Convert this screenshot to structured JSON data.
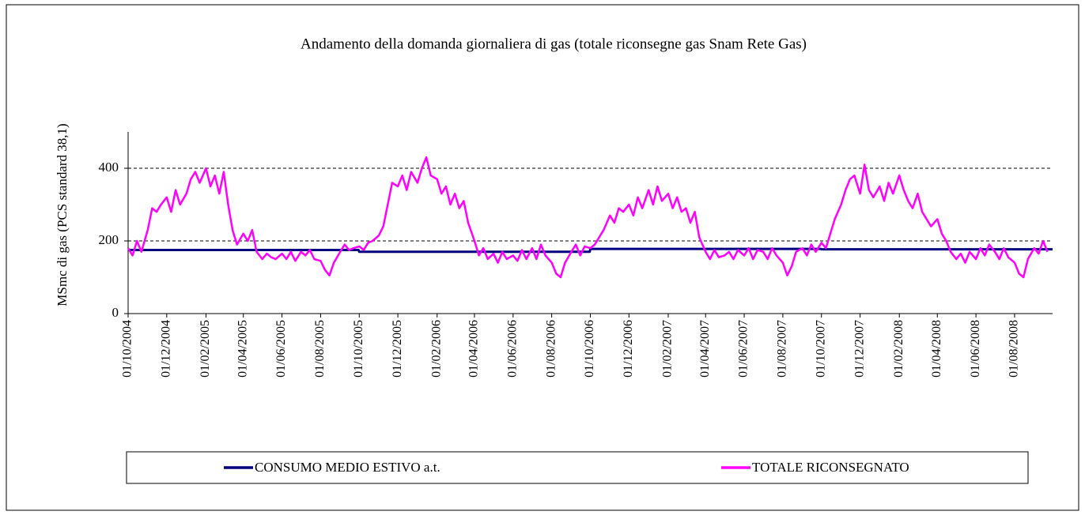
{
  "chart_data": {
    "type": "line",
    "title": "Andamento della domanda giornaliera di gas (totale riconsegne gas Snam Rete Gas)",
    "y_label": "MSmc di gas (PCS standard 38,1)",
    "xlim": [
      "01/10/2004",
      "30/09/2008"
    ],
    "xticks": [
      "01/10/2004",
      "01/12/2004",
      "01/02/2005",
      "01/04/2005",
      "01/06/2005",
      "01/08/2005",
      "01/10/2005",
      "01/12/2005",
      "01/02/2006",
      "01/04/2006",
      "01/06/2006",
      "01/08/2006",
      "01/10/2006",
      "01/12/2006",
      "01/02/2007",
      "01/04/2007",
      "01/06/2007",
      "01/08/2007",
      "01/10/2007",
      "01/12/2007",
      "01/02/2008",
      "01/04/2008",
      "01/06/2008",
      "01/08/2008"
    ],
    "ylim": [
      0,
      500
    ],
    "yticks": [
      0,
      200,
      400
    ],
    "grid": true,
    "legend": "bottom",
    "series": [
      {
        "name": "CONSUMO MEDIO ESTIVO a.t.",
        "color": "#000080",
        "x": [
          "01/10/2004",
          "30/09/2005",
          "01/10/2005",
          "30/09/2006",
          "01/10/2006",
          "30/09/2007",
          "01/10/2007",
          "30/09/2008"
        ],
        "values": [
          175,
          175,
          170,
          170,
          178,
          178,
          177,
          177
        ]
      },
      {
        "name": "TOTALE RICONSEGNATO",
        "color": "#ff00ff",
        "x": [
          "01/10/2004",
          "08/10/2004",
          "15/10/2004",
          "22/10/2004",
          "01/11/2004",
          "08/11/2004",
          "15/11/2004",
          "22/11/2004",
          "01/12/2004",
          "08/12/2004",
          "15/12/2004",
          "22/12/2004",
          "01/01/2005",
          "08/01/2005",
          "15/01/2005",
          "22/01/2005",
          "01/02/2005",
          "08/02/2005",
          "15/02/2005",
          "22/02/2005",
          "01/03/2005",
          "08/03/2005",
          "15/03/2005",
          "22/03/2005",
          "01/04/2005",
          "08/04/2005",
          "15/04/2005",
          "22/04/2005",
          "01/05/2005",
          "08/05/2005",
          "15/05/2005",
          "22/05/2005",
          "01/06/2005",
          "08/06/2005",
          "15/06/2005",
          "22/06/2005",
          "01/07/2005",
          "08/07/2005",
          "15/07/2005",
          "22/07/2005",
          "01/08/2005",
          "08/08/2005",
          "15/08/2005",
          "22/08/2005",
          "01/09/2005",
          "08/09/2005",
          "15/09/2005",
          "22/09/2005",
          "01/10/2005",
          "08/10/2005",
          "15/10/2005",
          "22/10/2005",
          "01/11/2005",
          "08/11/2005",
          "15/11/2005",
          "22/11/2005",
          "01/12/2005",
          "08/12/2005",
          "15/12/2005",
          "22/12/2005",
          "01/01/2006",
          "08/01/2006",
          "15/01/2006",
          "22/01/2006",
          "01/02/2006",
          "08/02/2006",
          "15/02/2006",
          "22/02/2006",
          "01/03/2006",
          "08/03/2006",
          "15/03/2006",
          "22/03/2006",
          "01/04/2006",
          "08/04/2006",
          "15/04/2006",
          "22/04/2006",
          "01/05/2006",
          "08/05/2006",
          "15/05/2006",
          "22/05/2006",
          "01/06/2006",
          "08/06/2006",
          "15/06/2006",
          "22/06/2006",
          "01/07/2006",
          "08/07/2006",
          "15/07/2006",
          "22/07/2006",
          "01/08/2006",
          "08/08/2006",
          "15/08/2006",
          "22/08/2006",
          "01/09/2006",
          "08/09/2006",
          "15/09/2006",
          "22/09/2006",
          "01/10/2006",
          "08/10/2006",
          "15/10/2006",
          "22/10/2006",
          "01/11/2006",
          "08/11/2006",
          "15/11/2006",
          "22/11/2006",
          "01/12/2006",
          "08/12/2006",
          "15/12/2006",
          "22/12/2006",
          "01/01/2007",
          "08/01/2007",
          "15/01/2007",
          "22/01/2007",
          "01/02/2007",
          "08/02/2007",
          "15/02/2007",
          "22/02/2007",
          "01/03/2007",
          "08/03/2007",
          "15/03/2007",
          "22/03/2007",
          "01/04/2007",
          "08/04/2007",
          "15/04/2007",
          "22/04/2007",
          "01/05/2007",
          "08/05/2007",
          "15/05/2007",
          "22/05/2007",
          "01/06/2007",
          "08/06/2007",
          "15/06/2007",
          "22/06/2007",
          "01/07/2007",
          "08/07/2007",
          "15/07/2007",
          "22/07/2007",
          "01/08/2007",
          "08/08/2007",
          "15/08/2007",
          "22/08/2007",
          "01/09/2007",
          "08/09/2007",
          "15/09/2007",
          "22/09/2007",
          "01/10/2007",
          "08/10/2007",
          "15/10/2007",
          "22/10/2007",
          "01/11/2007",
          "08/11/2007",
          "15/11/2007",
          "22/11/2007",
          "01/12/2007",
          "08/12/2007",
          "15/12/2007",
          "22/12/2007",
          "01/01/2008",
          "08/01/2008",
          "15/01/2008",
          "22/01/2008",
          "01/02/2008",
          "08/02/2008",
          "15/02/2008",
          "22/02/2008",
          "01/03/2008",
          "08/03/2008",
          "15/03/2008",
          "22/03/2008",
          "01/04/2008",
          "08/04/2008",
          "15/04/2008",
          "22/04/2008",
          "01/05/2008",
          "08/05/2008",
          "15/05/2008",
          "22/05/2008",
          "01/06/2008",
          "08/06/2008",
          "15/06/2008",
          "22/06/2008",
          "01/07/2008",
          "08/07/2008",
          "15/07/2008",
          "22/07/2008",
          "01/08/2008",
          "08/08/2008",
          "15/08/2008",
          "22/08/2008",
          "01/09/2008",
          "08/09/2008",
          "15/09/2008",
          "22/09/2008"
        ],
        "values": [
          180,
          160,
          200,
          170,
          230,
          290,
          280,
          300,
          320,
          280,
          340,
          300,
          330,
          370,
          390,
          360,
          400,
          350,
          380,
          330,
          390,
          300,
          230,
          190,
          220,
          200,
          230,
          170,
          150,
          165,
          155,
          150,
          165,
          150,
          170,
          145,
          170,
          160,
          175,
          150,
          145,
          120,
          105,
          140,
          170,
          190,
          175,
          180,
          185,
          175,
          195,
          200,
          215,
          240,
          300,
          360,
          350,
          380,
          340,
          390,
          360,
          400,
          430,
          380,
          370,
          330,
          350,
          300,
          330,
          290,
          310,
          250,
          200,
          160,
          180,
          150,
          165,
          140,
          170,
          150,
          160,
          145,
          175,
          150,
          180,
          150,
          190,
          160,
          140,
          110,
          100,
          140,
          170,
          190,
          160,
          185,
          180,
          190,
          210,
          230,
          270,
          250,
          290,
          280,
          300,
          270,
          320,
          290,
          340,
          300,
          350,
          310,
          330,
          290,
          320,
          280,
          290,
          250,
          280,
          210,
          170,
          150,
          175,
          155,
          160,
          170,
          150,
          175,
          160,
          180,
          150,
          175,
          170,
          150,
          180,
          160,
          140,
          105,
          130,
          170,
          180,
          160,
          190,
          170,
          195,
          180,
          220,
          260,
          300,
          340,
          370,
          380,
          330,
          410,
          340,
          320,
          350,
          310,
          360,
          330,
          380,
          340,
          310,
          290,
          330,
          280,
          260,
          240,
          260,
          220,
          200,
          170,
          150,
          165,
          140,
          170,
          150,
          180,
          160,
          190,
          170,
          150,
          180,
          155,
          140,
          110,
          100,
          150,
          180,
          165,
          200,
          170
        ]
      }
    ]
  }
}
